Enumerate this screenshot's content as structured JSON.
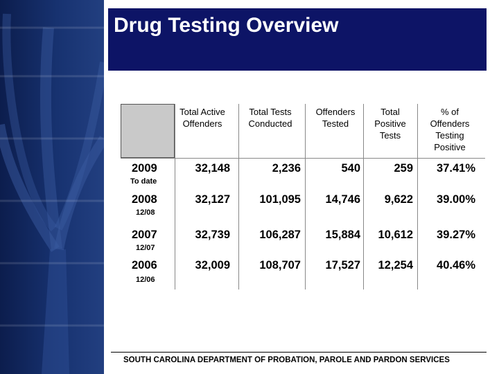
{
  "slide": {
    "title": "Drug Testing Overview"
  },
  "table": {
    "headers": [
      "Total Active Offenders",
      "Total Tests Conducted",
      "Offenders Tested",
      "Total Positive Tests",
      "% of Offenders Testing Positive"
    ],
    "rows": [
      {
        "year": "2009",
        "sub": "To date",
        "values": [
          "32,148",
          "2,236",
          "540",
          "259",
          "37.41%"
        ]
      },
      {
        "year": "2008",
        "sub": "12/08",
        "values": [
          "32,127",
          "101,095",
          "14,746",
          "9,622",
          "39.00%"
        ]
      },
      {
        "year": "2007",
        "sub": "12/07",
        "values": [
          "32,739",
          "106,287",
          "15,884",
          "10,612",
          "39.27%"
        ]
      },
      {
        "year": "2006",
        "sub": "12/06",
        "values": [
          "32,009",
          "108,707",
          "17,527",
          "12,254",
          "40.46%"
        ]
      }
    ]
  },
  "footer": {
    "text": "SOUTH CAROLINA DEPARTMENT OF PROBATION, PAROLE AND PARDON SERVICES"
  },
  "colors": {
    "title_bg": "#0d1466",
    "sidebar": "#173270",
    "header_cell": "#c9c9c9"
  }
}
